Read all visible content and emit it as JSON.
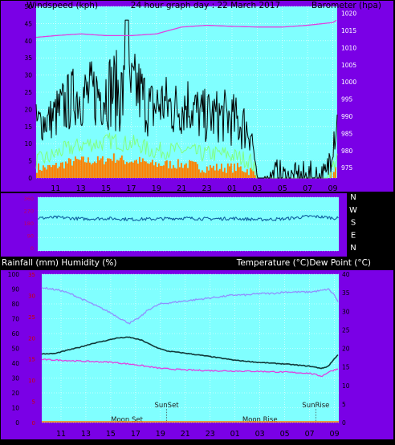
{
  "colors": {
    "panel": "#7a00e6",
    "plot": "#80ffff",
    "windspeed": "#000000",
    "gust": "#80ff80",
    "barometer": "#e040e0",
    "wind_dir": "#1060a0",
    "rain": "#ff8000",
    "temperature": "#103838",
    "humidity": "#9090ff",
    "dewpoint": "#e040e0",
    "left_tick": "#cc0000",
    "right_tick": "#ffffff",
    "grid": "#ffffff"
  },
  "chart_data": [
    {
      "type": "line",
      "title": "24 hour graph day : 22 March 2017",
      "ylabel": "Windspeed (kph)",
      "y2label": "Barometer (hpa)",
      "x_ticks": [
        "11",
        "13",
        "15",
        "17",
        "19",
        "21",
        "23",
        "01",
        "03",
        "05",
        "07",
        "09"
      ],
      "ylim": [
        0,
        50
      ],
      "y_ticks": [
        0,
        5,
        10,
        15,
        20,
        25,
        30,
        35,
        40,
        45,
        50
      ],
      "y2lim": [
        972,
        1022
      ],
      "y2_ticks": [
        975,
        980,
        985,
        990,
        995,
        1000,
        1005,
        1010,
        1015,
        1020
      ],
      "grid": true,
      "series": [
        {
          "role": "windspeed",
          "x": [
            9.5,
            10.5,
            11.5,
            12.5,
            13.5,
            14.5,
            15.5,
            16.5,
            17.5,
            18.5,
            19.5,
            20.5,
            21.5,
            22.5,
            23.5,
            24.5,
            25.5,
            26.5,
            27.0,
            27.5,
            28.5,
            29.5,
            30.5,
            31.5,
            32.5,
            33.0,
            33.3
          ],
          "values": [
            16,
            17,
            20,
            24,
            24,
            25,
            26,
            24,
            26,
            20,
            22,
            20,
            22,
            18,
            18,
            18,
            16,
            14,
            0,
            0,
            0,
            0,
            0,
            0,
            0,
            12,
            16
          ],
          "spread": [
            6,
            6,
            9,
            9,
            10,
            11,
            12,
            12,
            11,
            9,
            9,
            9,
            9,
            8,
            8,
            8,
            8,
            7,
            0,
            0,
            6,
            4,
            5,
            5,
            5,
            7,
            8
          ]
        },
        {
          "role": "gust",
          "x": [
            9.5,
            10.5,
            11.5,
            12.5,
            13.5,
            14.5,
            15.5,
            16.5,
            17.5,
            18.5,
            19.5,
            20.5,
            21.5,
            22.5,
            23.5,
            24.5,
            25.5,
            26.5,
            27.0,
            27.5,
            28.5,
            29.5,
            30.5,
            31.5,
            32.5,
            33.0,
            33.3
          ],
          "values": [
            5,
            6,
            8,
            9,
            10,
            10,
            11,
            10,
            10,
            8,
            8,
            8,
            8,
            7,
            7,
            7,
            6,
            5,
            0,
            0,
            0,
            0,
            0,
            0,
            0,
            3,
            6
          ]
        },
        {
          "role": "average",
          "x": [
            9.5,
            10.5,
            11.5,
            12.5,
            13.5,
            14.5,
            15.5,
            16.5,
            17.5,
            18.5,
            19.5,
            20.5,
            21.5,
            22.5,
            23.5,
            24.5,
            25.5,
            26.5,
            27.0,
            27.5,
            28.5,
            29.5,
            30.5,
            31.5,
            32.5,
            33.0,
            33.3
          ],
          "values": [
            3,
            3,
            4,
            5,
            5,
            5,
            6,
            5,
            5,
            4,
            4,
            4,
            4,
            3,
            3,
            3,
            3,
            2,
            0,
            0,
            0,
            0,
            0,
            0,
            0,
            1,
            3
          ]
        },
        {
          "role": "barometer",
          "axis": "right",
          "x": [
            9.5,
            11,
            13,
            15,
            17,
            19,
            20,
            21,
            23,
            25,
            27,
            29,
            31,
            33,
            33.3
          ],
          "values": [
            1013,
            1013.5,
            1014,
            1013.5,
            1013.5,
            1014,
            1015,
            1016,
            1016.5,
            1016.2,
            1016,
            1016,
            1016.5,
            1017.3,
            1018
          ]
        }
      ]
    },
    {
      "type": "line",
      "right_labels": [
        "N",
        "W",
        "S",
        "E",
        "N"
      ],
      "left_ticks": [
        "360",
        "270",
        "180",
        "90",
        "0"
      ],
      "ylim": [
        0,
        360
      ],
      "series": [
        {
          "role": "wind_direction",
          "x": [
            9.5,
            11,
            13,
            15,
            17,
            19,
            21,
            23,
            25,
            27,
            29,
            31,
            32,
            33.3
          ],
          "values": [
            220,
            225,
            215,
            218,
            212,
            215,
            220,
            215,
            218,
            210,
            215,
            232,
            228,
            218
          ]
        }
      ]
    },
    {
      "type": "line",
      "ylabel": "Rainfall (mm)  Humidity (%)",
      "y2label": "Temperature (°C)Dew Point (°C)",
      "x_ticks": [
        "11",
        "13",
        "15",
        "17",
        "19",
        "21",
        "23",
        "01",
        "03",
        "05",
        "07",
        "09"
      ],
      "ylim": [
        0,
        100
      ],
      "y_ticks": [
        0,
        10,
        20,
        30,
        40,
        50,
        60,
        70,
        80,
        90,
        100
      ],
      "rain_ticks": [
        0,
        5,
        10,
        15,
        20,
        25,
        30,
        35
      ],
      "y2lim": [
        0,
        40
      ],
      "y2_ticks": [
        0,
        5,
        10,
        15,
        20,
        25,
        30,
        35,
        40
      ],
      "grid": true,
      "annotations": [
        {
          "label": "Moon Set",
          "x": 16.3,
          "row": "low"
        },
        {
          "label": "SunSet",
          "x": 19.5,
          "row": "high"
        },
        {
          "label": "Moon Rise",
          "x": 27.0,
          "row": "low"
        },
        {
          "label": "SunRise",
          "x": 31.5,
          "row": "high"
        }
      ],
      "series": [
        {
          "role": "humidity",
          "x": [
            9.5,
            11,
            12,
            13,
            14,
            15,
            16,
            16.5,
            17,
            17.5,
            18,
            19,
            20,
            21,
            22,
            23,
            24,
            25,
            26,
            27,
            28,
            29,
            30,
            31,
            32,
            32.5,
            33,
            33.3
          ],
          "values": [
            91,
            89,
            86,
            82,
            78,
            74,
            69,
            67,
            69,
            72,
            76,
            80,
            81,
            82,
            83,
            84,
            85,
            86,
            86,
            87,
            87,
            88,
            88,
            88,
            89,
            90,
            86,
            81
          ]
        },
        {
          "role": "temperature",
          "axis": "right",
          "x": [
            9.5,
            10.5,
            11.5,
            12.5,
            13.5,
            14.5,
            15.5,
            16.5,
            17.5,
            18.5,
            19.5,
            21,
            23,
            25,
            27,
            29,
            31,
            32,
            32.5,
            33,
            33.3
          ],
          "values": [
            18.5,
            18.6,
            19.5,
            20.3,
            21.3,
            22,
            22.8,
            23,
            22.2,
            20.5,
            19.3,
            18.7,
            17.8,
            16.8,
            16.2,
            15.8,
            15.2,
            14.6,
            15.2,
            17.2,
            18.4
          ]
        },
        {
          "role": "dewpoint",
          "axis": "right",
          "x": [
            9.5,
            11,
            13,
            15,
            17,
            19,
            21,
            23,
            25,
            27,
            29,
            31,
            32,
            32.5,
            33,
            33.3
          ],
          "values": [
            17,
            16.8,
            16.5,
            16.3,
            15.6,
            14.6,
            14.2,
            14,
            13.9,
            13.8,
            13.6,
            13.3,
            12.5,
            13.6,
            14.2,
            14.5
          ]
        },
        {
          "role": "rainfall",
          "x": [
            9.5,
            33.3
          ],
          "values": [
            0,
            0
          ]
        }
      ]
    }
  ]
}
